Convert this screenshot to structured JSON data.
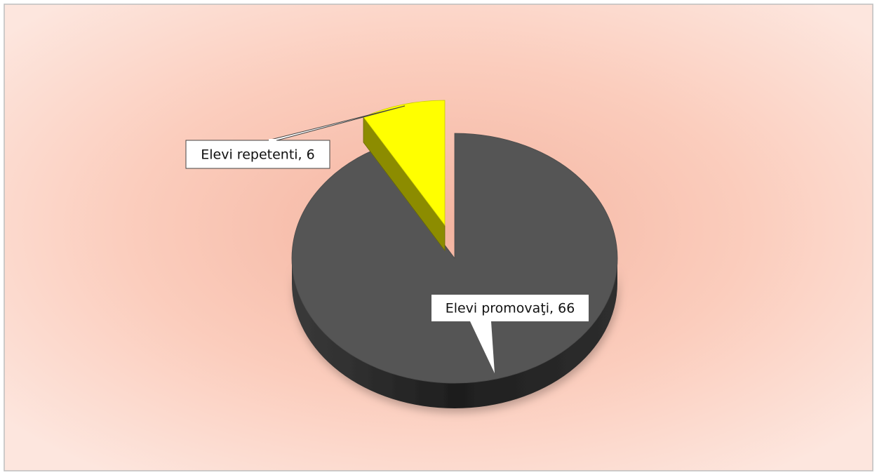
{
  "chart_data": {
    "type": "pie",
    "values": [
      66,
      6
    ],
    "value_labels": [
      "Elevi promovaţi, 66",
      "Elevi repetenti, 6"
    ],
    "colors": [
      "#555555",
      "#ffff00"
    ],
    "explode": [
      false,
      true
    ]
  }
}
